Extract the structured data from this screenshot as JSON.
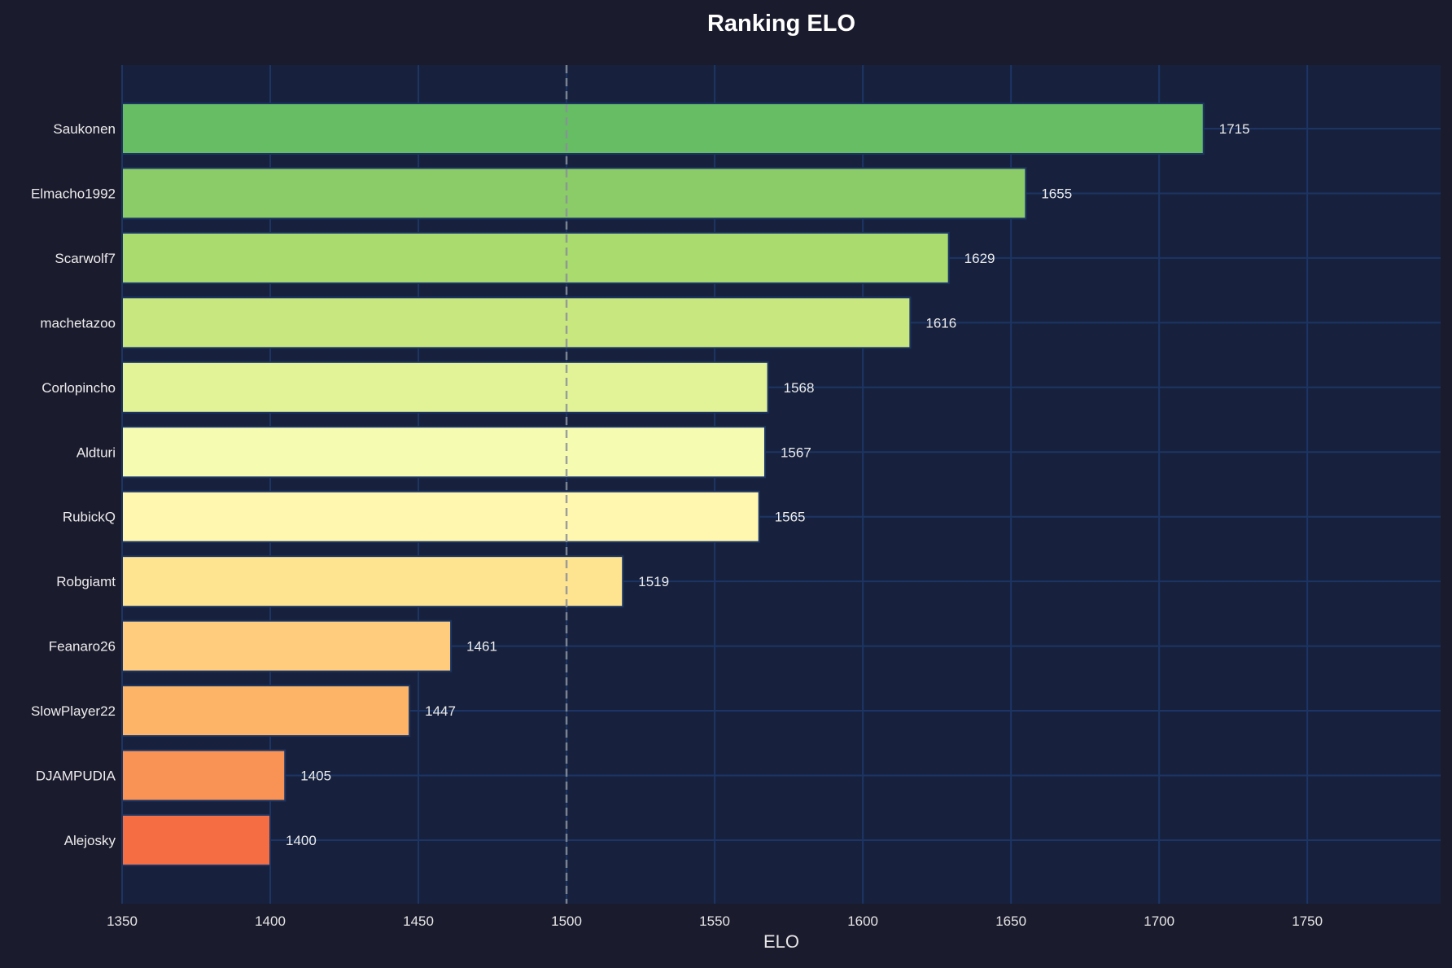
{
  "chart_data": {
    "type": "bar",
    "orientation": "horizontal",
    "title": "Ranking ELO",
    "xlabel": "ELO",
    "ylabel": "",
    "xlim": [
      1350,
      1795
    ],
    "xticks": [
      1350,
      1400,
      1450,
      1500,
      1550,
      1600,
      1650,
      1700,
      1750
    ],
    "grid": true,
    "reference_line": {
      "x": 1500,
      "style": "dashed",
      "color": "#8a8f99"
    },
    "categories": [
      "Saukonen",
      "Elmacho1992",
      "Scarwolf7",
      "machetazoo",
      "Corlopincho",
      "Aldturi",
      "RubickQ",
      "Robgiamt",
      "Feanaro26",
      "SlowPlayer22",
      "DJAMPUDIA",
      "Alejosky"
    ],
    "values": [
      1715,
      1655,
      1629,
      1616,
      1568,
      1567,
      1565,
      1519,
      1461,
      1447,
      1405,
      1400
    ],
    "colors": [
      "#66bd63",
      "#8bcc68",
      "#aadb6e",
      "#c9e77f",
      "#e2f397",
      "#f5fbb1",
      "#fff6b0",
      "#fee391",
      "#fecc7c",
      "#fdb466",
      "#f99355",
      "#f46d43"
    ],
    "background": "#1b1b2e",
    "plot_background": "#17213d",
    "grid_color": "#1c3564"
  }
}
